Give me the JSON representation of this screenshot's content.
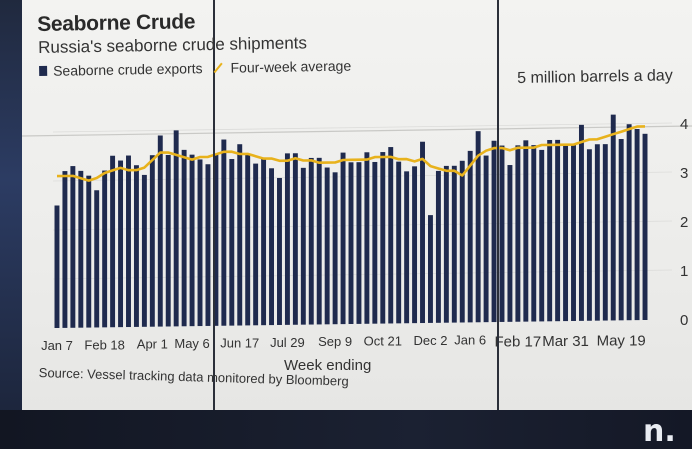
{
  "title": "Seaborne Crude",
  "subtitle": "Russia's seaborne crude shipments",
  "unit_label": "5 million barrels a day",
  "source": "Source: Vessel tracking data monitored by Bloomberg",
  "logo": "n.",
  "colors": {
    "bars": "#1f2a4e",
    "average_line": "#e8b21c",
    "background": "#efefed"
  },
  "legend": [
    {
      "label": "Seaborne crude exports",
      "swatch": "bar"
    },
    {
      "label": "Four-week average",
      "swatch": "line"
    }
  ],
  "chart_data": {
    "type": "bar",
    "title": "Seaborne Crude",
    "subtitle": "Russia's seaborne crude shipments",
    "xlabel": "Week ending",
    "ylabel": "5 million barrels a day",
    "ylim": [
      0,
      4
    ],
    "ytick_labels": [
      "0",
      "1",
      "2",
      "3",
      "4"
    ],
    "x_tick_labels": [
      {
        "label": "Jan 7",
        "bar_index": 0
      },
      {
        "label": "Feb 18",
        "bar_index": 6
      },
      {
        "label": "Apr 1",
        "bar_index": 12
      },
      {
        "label": "May 6",
        "bar_index": 17
      },
      {
        "label": "Jun 17",
        "bar_index": 23
      },
      {
        "label": "Jul 29",
        "bar_index": 29
      },
      {
        "label": "Sep 9",
        "bar_index": 35
      },
      {
        "label": "Oct 21",
        "bar_index": 41
      },
      {
        "label": "Dec 2",
        "bar_index": 47
      },
      {
        "label": "Jan 6",
        "bar_index": 52
      },
      {
        "label": "Feb 17",
        "bar_index": 58
      },
      {
        "label": "Mar 31",
        "bar_index": 64
      },
      {
        "label": "May 19",
        "bar_index": 71
      }
    ],
    "series": [
      {
        "name": "Seaborne crude exports",
        "kind": "bar",
        "values": [
          2.5,
          3.2,
          3.3,
          3.2,
          3.1,
          2.8,
          3.2,
          3.5,
          3.4,
          3.5,
          3.3,
          3.1,
          3.5,
          3.9,
          3.5,
          4.0,
          3.6,
          3.5,
          3.4,
          3.3,
          3.5,
          3.8,
          3.4,
          3.7,
          3.5,
          3.3,
          3.4,
          3.2,
          3.0,
          3.5,
          3.5,
          3.2,
          3.4,
          3.4,
          3.2,
          3.1,
          3.5,
          3.3,
          3.3,
          3.5,
          3.3,
          3.5,
          3.6,
          3.3,
          3.1,
          3.2,
          3.7,
          2.2,
          3.1,
          3.2,
          3.2,
          3.3,
          3.5,
          3.9,
          3.4,
          3.7,
          3.6,
          3.2,
          3.6,
          3.7,
          3.6,
          3.5,
          3.7,
          3.7,
          3.6,
          3.6,
          4.0,
          3.5,
          3.6,
          3.6,
          4.2,
          3.7,
          4.0,
          3.9,
          3.8
        ]
      },
      {
        "name": "Four-week average",
        "kind": "line",
        "values": [
          3.1,
          3.1,
          3.1,
          3.05,
          3.0,
          3.05,
          3.15,
          3.2,
          3.25,
          3.2,
          3.2,
          3.25,
          3.4,
          3.55,
          3.55,
          3.5,
          3.45,
          3.4,
          3.45,
          3.45,
          3.5,
          3.55,
          3.55,
          3.5,
          3.5,
          3.45,
          3.4,
          3.4,
          3.35,
          3.35,
          3.4,
          3.35,
          3.35,
          3.3,
          3.3,
          3.3,
          3.35,
          3.35,
          3.35,
          3.35,
          3.4,
          3.4,
          3.4,
          3.35,
          3.35,
          3.3,
          3.35,
          3.2,
          3.15,
          3.1,
          3.1,
          3.0,
          3.2,
          3.4,
          3.5,
          3.55,
          3.55,
          3.5,
          3.55,
          3.55,
          3.55,
          3.6,
          3.6,
          3.6,
          3.6,
          3.6,
          3.65,
          3.7,
          3.7,
          3.75,
          3.8,
          3.85,
          3.9,
          3.95,
          3.95
        ]
      }
    ],
    "grid": true,
    "legend_position": "top-left"
  }
}
